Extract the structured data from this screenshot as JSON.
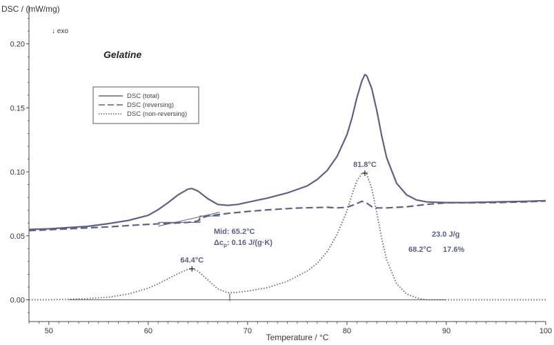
{
  "chart_data": {
    "type": "line",
    "title": "Gelatine",
    "xlabel": "Temperature / °C",
    "ylabel": "DSC / (mW/mg)",
    "exo_marker": "↓ exo",
    "xlim": [
      48,
      100
    ],
    "ylim": [
      -0.017,
      0.23
    ],
    "x_ticks": [
      50,
      60,
      70,
      80,
      90,
      100
    ],
    "x_tick_labels": [
      "50",
      "60",
      "70",
      "80",
      "90",
      "100"
    ],
    "y_ticks": [
      0.0,
      0.05,
      0.1,
      0.15,
      0.2
    ],
    "y_tick_labels": [
      "0.00",
      "0.05",
      "0.10",
      "0.15",
      "0.20"
    ],
    "grid": false,
    "legend_position": "upper-left",
    "colors": {
      "series": "#5d5f8a",
      "axis": "#444444",
      "annotation": "#5a5e8a"
    },
    "series": [
      {
        "name": "DSC (total)",
        "style": "solid",
        "x": [
          48,
          50,
          52,
          54,
          56,
          58,
          60,
          61,
          62,
          63,
          64,
          64.4,
          65,
          66,
          67,
          68,
          69,
          70,
          72,
          74,
          76,
          77,
          78,
          79,
          80,
          80.5,
          81,
          81.5,
          81.8,
          82,
          82.5,
          83,
          83.5,
          84,
          85,
          86,
          87,
          88,
          89,
          90,
          92,
          95,
          98,
          100
        ],
        "y": [
          0.055,
          0.0555,
          0.0565,
          0.0575,
          0.0595,
          0.062,
          0.066,
          0.0705,
          0.076,
          0.082,
          0.0865,
          0.087,
          0.085,
          0.079,
          0.0745,
          0.0738,
          0.0745,
          0.0762,
          0.0795,
          0.0835,
          0.089,
          0.094,
          0.101,
          0.112,
          0.129,
          0.142,
          0.158,
          0.171,
          0.176,
          0.175,
          0.165,
          0.148,
          0.128,
          0.111,
          0.091,
          0.082,
          0.078,
          0.0765,
          0.0762,
          0.076,
          0.076,
          0.0765,
          0.077,
          0.0775
        ]
      },
      {
        "name": "DSC (reversing)",
        "style": "dashed",
        "x": [
          48,
          52,
          56,
          60,
          62,
          64,
          65,
          65.2,
          66,
          68,
          70,
          72,
          75,
          78,
          79,
          80,
          80.8,
          81.5,
          82,
          82.5,
          83,
          84,
          86,
          88,
          90,
          92,
          95,
          98,
          100
        ],
        "y": [
          0.054,
          0.0555,
          0.057,
          0.059,
          0.0597,
          0.0605,
          0.0615,
          0.0635,
          0.0655,
          0.0675,
          0.069,
          0.0703,
          0.0717,
          0.0723,
          0.0718,
          0.0723,
          0.0745,
          0.077,
          0.0755,
          0.0728,
          0.0718,
          0.0718,
          0.0727,
          0.0745,
          0.0758,
          0.0758,
          0.076,
          0.0765,
          0.0772
        ]
      },
      {
        "name": "DSC (non-reversing)",
        "style": "dotted",
        "x": [
          48,
          50,
          52,
          54,
          56,
          58,
          60,
          61,
          62,
          63,
          64,
          64.4,
          65,
          66,
          67,
          68,
          69,
          70,
          72,
          74,
          76,
          77,
          78,
          79,
          80,
          80.5,
          81,
          81.5,
          81.8,
          82,
          82.5,
          83,
          83.5,
          84,
          85,
          86,
          87,
          88,
          89,
          90,
          92,
          95,
          98,
          100
        ],
        "y": [
          0.0,
          0.0,
          0.0005,
          0.001,
          0.002,
          0.0045,
          0.009,
          0.0125,
          0.0165,
          0.0205,
          0.0238,
          0.0242,
          0.0225,
          0.0155,
          0.0085,
          0.0055,
          0.0058,
          0.0068,
          0.0095,
          0.0145,
          0.0225,
          0.0285,
          0.0375,
          0.051,
          0.0695,
          0.082,
          0.093,
          0.0985,
          0.099,
          0.098,
          0.087,
          0.068,
          0.048,
          0.031,
          0.0125,
          0.0045,
          0.0015,
          0.0,
          0.0,
          0.0,
          0.0,
          0.0,
          0.0,
          0.0
        ]
      }
    ],
    "baseline": {
      "x_start": 52,
      "x_end": 90,
      "y": 0.0
    },
    "peak_markers": [
      {
        "label": "81.8°C",
        "x": 81.8,
        "y": 0.099
      },
      {
        "label": "64.4°C",
        "x": 64.4,
        "y": 0.0242
      }
    ],
    "glass_transition": {
      "line1": "Mid:  65.2°C",
      "line2": "Δc",
      "line2_sub": "p",
      "line2_rest": ":  0.16 J/(g·K)",
      "x_onset": 62.5,
      "x_mid": 65.2,
      "x_end": 66.2,
      "y_low": 0.0605,
      "y_high": 0.0655
    },
    "integration": {
      "enthalpy": "23.0 J/g",
      "onset": "68.2°C",
      "percent": "17.6%",
      "tick_x": 68.2
    }
  }
}
